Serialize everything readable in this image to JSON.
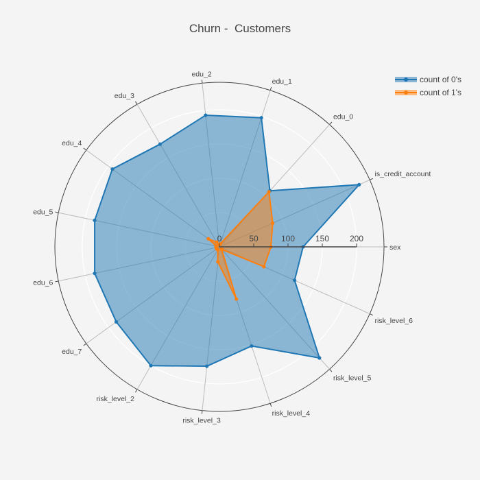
{
  "chart_data": {
    "type": "radar",
    "title": "Churn -  Customers",
    "categories": [
      "sex",
      "is_credit_account",
      "edu_0",
      "edu_1",
      "edu_2",
      "edu_3",
      "edu_4",
      "edu_5",
      "edu_6",
      "edu_7",
      "risk_level_2",
      "risk_level_3",
      "risk_level_4",
      "risk_level_5",
      "risk_level_6"
    ],
    "radial_range": [
      0,
      200
    ],
    "radial_ticks": [
      0,
      50,
      100,
      150,
      200
    ],
    "legend_position": "top-right",
    "series": [
      {
        "name": "count of 0's",
        "color": "#1f77b4",
        "values": [
          122,
          223,
          110,
          198,
          193,
          173,
          193,
          186,
          186,
          186,
          200,
          175,
          152,
          218,
          120
        ]
      },
      {
        "name": "count of 1's",
        "color": "#ff7f0e",
        "values": [
          75,
          85,
          108,
          5,
          3,
          8,
          20,
          5,
          5,
          5,
          5,
          22,
          80,
          5,
          71
        ]
      }
    ]
  }
}
